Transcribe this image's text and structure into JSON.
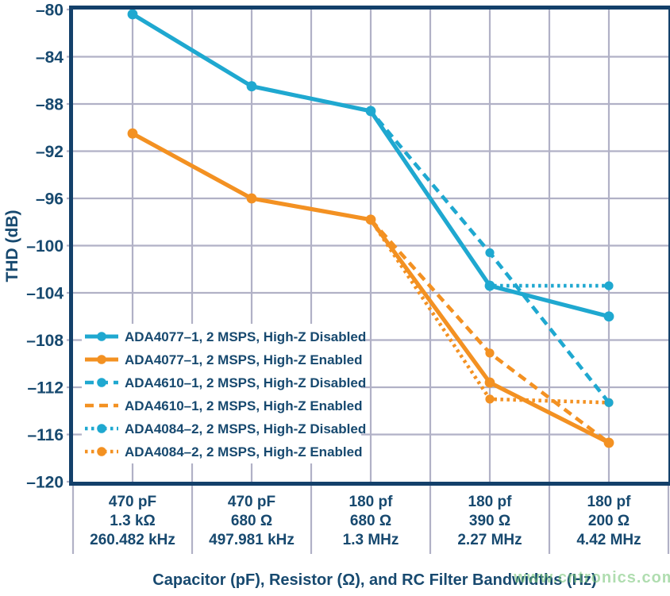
{
  "colors": {
    "blue": "#1FA8D0",
    "orange": "#F39122",
    "navy": "#17496F",
    "grid": "#B1B1C6",
    "plot_border": "#13406A",
    "legend_bg": "#FFFFFF",
    "watermark_green": "#7CC87C",
    "background": "#FFFFFF"
  },
  "chart_data": {
    "type": "line",
    "title": "",
    "ylabel": "THD (dB)",
    "xlabel": "Capacitor (pF), Resistor (Ω), and RC Filter Bandwidths (Hz)",
    "watermark": "www.cntronics.com",
    "ylim": [
      -120,
      -80
    ],
    "ytick_step": 4,
    "yticks": [
      {
        "value": -80,
        "label": "–80"
      },
      {
        "value": -84,
        "label": "–84"
      },
      {
        "value": -88,
        "label": "–88"
      },
      {
        "value": -92,
        "label": "–92"
      },
      {
        "value": -96,
        "label": "–96"
      },
      {
        "value": -100,
        "label": "–100"
      },
      {
        "value": -104,
        "label": "–104"
      },
      {
        "value": -108,
        "label": "–108"
      },
      {
        "value": -112,
        "label": "–112"
      },
      {
        "value": -116,
        "label": "–116"
      },
      {
        "value": -120,
        "label": "–120"
      }
    ],
    "grid": true,
    "legend_position": "inside-lower-left",
    "categories": [
      [
        "470 pF",
        "1.3 kΩ",
        "260.482 kHz"
      ],
      [
        "470 pF",
        "680 Ω",
        "497.981 kHz"
      ],
      [
        "180 pf",
        "680 Ω",
        "1.3 MHz"
      ],
      [
        "180 pf",
        "390 Ω",
        "2.27 MHz"
      ],
      [
        "180 pf",
        "200 Ω",
        "4.42 MHz"
      ]
    ],
    "series": [
      {
        "name": "ADA4077–1, 2 MSPS, High-Z Disabled",
        "color": "blue",
        "style": "solid",
        "marker": "circle",
        "legend_marker": true,
        "values": [
          -80.4,
          -86.5,
          -88.6,
          -103.4,
          -106.0
        ]
      },
      {
        "name": "ADA4077–1, 2 MSPS, High-Z Enabled",
        "color": "orange",
        "style": "solid",
        "marker": "circle",
        "legend_marker": true,
        "values": [
          -90.5,
          -96.0,
          -97.8,
          -111.6,
          -116.7
        ]
      },
      {
        "name": "ADA4610–1, 2 MSPS, High-Z Disabled",
        "color": "blue",
        "style": "dashed",
        "marker": "circle",
        "legend_marker": true,
        "values": [
          -80.4,
          -86.5,
          -88.6,
          -100.6,
          -113.3
        ]
      },
      {
        "name": "ADA4610–1, 2 MSPS, High-Z Enabled",
        "color": "orange",
        "style": "dashed",
        "marker": "circle",
        "legend_marker": false,
        "values": [
          -90.5,
          -96.0,
          -97.8,
          -109.1,
          -116.7
        ]
      },
      {
        "name": "ADA4084–2, 2 MSPS, High-Z Disabled",
        "color": "blue",
        "style": "dotted",
        "marker": "circle",
        "legend_marker": true,
        "values": [
          -80.4,
          -86.5,
          -88.6,
          -103.4,
          -103.4
        ]
      },
      {
        "name": "ADA4084–2, 2 MSPS, High-Z Enabled",
        "color": "orange",
        "style": "dotted",
        "marker": "circle",
        "legend_marker": true,
        "values": [
          -90.5,
          -96.0,
          -97.8,
          -113.0,
          -113.3
        ]
      }
    ]
  }
}
